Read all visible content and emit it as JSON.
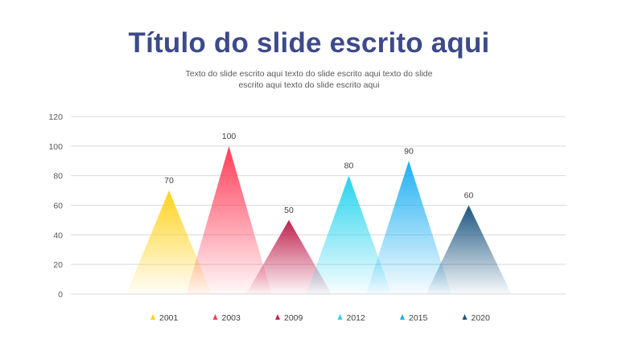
{
  "slide": {
    "title": "Título do slide escrito aqui",
    "subtitle": "Texto do slide escrito aqui texto do slide escrito aqui texto do slide escrito aqui texto do slide escrito aqui"
  },
  "chart_data": {
    "type": "bar",
    "mark_shape": "triangle",
    "title": "",
    "xlabel": "",
    "ylabel": "",
    "ylim": [
      0,
      120
    ],
    "yticks": [
      0,
      20,
      40,
      60,
      80,
      100,
      120
    ],
    "grid": true,
    "legend_position": "bottom",
    "categories": [
      "2001",
      "2003",
      "2009",
      "2012",
      "2015",
      "2020"
    ],
    "values": [
      70,
      100,
      50,
      80,
      90,
      60
    ],
    "data_labels": [
      "70",
      "100",
      "50",
      "80",
      "90",
      "60"
    ],
    "colors": [
      "#ffd21f",
      "#ff3d57",
      "#c0224f",
      "#26d3ee",
      "#1fb0f2",
      "#1c5580"
    ]
  }
}
